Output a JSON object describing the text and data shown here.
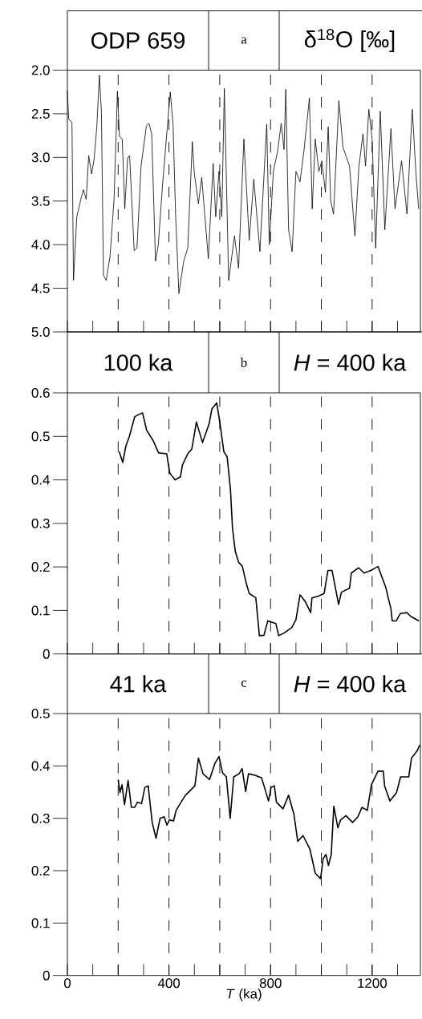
{
  "chart_data": [
    {
      "type": "line",
      "annotations": [
        "ODP 659",
        "a",
        "δ$^{18}$O [‰]"
      ],
      "color": "#000000",
      "x": [
        0,
        5,
        18,
        24,
        37,
        53,
        63,
        74,
        84,
        95,
        105,
        116,
        126,
        134,
        142,
        153,
        168,
        184,
        197,
        205,
        216,
        226,
        237,
        245,
        263,
        274,
        290,
        311,
        321,
        332,
        347,
        358,
        374,
        405,
        416,
        426,
        439,
        458,
        474,
        492,
        500,
        516,
        529,
        555,
        574,
        584,
        597,
        608,
        618,
        635,
        658,
        674,
        695,
        716,
        734,
        758,
        785,
        795,
        811,
        827,
        842,
        853,
        860,
        871,
        885,
        900,
        916,
        932,
        953,
        964,
        976,
        990,
        1002,
        1016,
        1027,
        1037,
        1048,
        1069,
        1085,
        1111,
        1132,
        1148,
        1164,
        1174,
        1187,
        1200,
        1214,
        1232,
        1250,
        1274,
        1290,
        1316,
        1337,
        1358,
        1372,
        1383
      ],
      "values": [
        2.24,
        2.56,
        2.6,
        4.41,
        3.68,
        3.48,
        3.37,
        3.48,
        2.98,
        3.19,
        3.03,
        2.64,
        2.06,
        2.48,
        4.35,
        4.41,
        4.13,
        3.47,
        2.24,
        2.76,
        2.79,
        3.59,
        3.01,
        2.98,
        4.07,
        4.04,
        3.1,
        2.64,
        2.61,
        2.73,
        4.19,
        4.0,
        3.34,
        2.25,
        2.61,
        3.65,
        4.56,
        4.19,
        4.04,
        2.82,
        3.19,
        3.53,
        3.23,
        4.16,
        3.07,
        3.68,
        3.16,
        3.68,
        2.21,
        4.41,
        3.9,
        4.27,
        2.79,
        3.95,
        3.25,
        4.08,
        2.62,
        4.0,
        3.16,
        2.94,
        2.61,
        2.91,
        2.22,
        3.83,
        4.08,
        3.16,
        3.28,
        2.91,
        2.32,
        3.59,
        2.79,
        3.16,
        3.04,
        3.4,
        2.65,
        3.5,
        3.65,
        2.35,
        2.88,
        3.1,
        3.9,
        3.1,
        2.73,
        3.1,
        2.45,
        2.79,
        4.04,
        2.47,
        3.83,
        2.67,
        3.59,
        3.04,
        3.65,
        2.45,
        3.16,
        3.59
      ],
      "xlim": [
        0,
        1390
      ],
      "ylim": [
        5.0,
        2.0
      ],
      "tick_labels": "y",
      "xticks": [
        0,
        {
          "value": 100,
          "label": null
        },
        {
          "value": 200,
          "label": null
        },
        {
          "value": 300,
          "label": null
        },
        400,
        {
          "value": 500,
          "label": null
        },
        {
          "value": 600,
          "label": null
        },
        {
          "value": 700,
          "label": null
        },
        800,
        {
          "value": 900,
          "label": null
        },
        {
          "value": 1000,
          "label": null
        },
        {
          "value": 1100,
          "label": null
        },
        1200,
        {
          "value": 1300,
          "label": null
        }
      ],
      "yticks": [
        {
          "value": 2,
          "label": "2.0"
        },
        2.5,
        {
          "value": 3,
          "label": "3.0"
        },
        3.5,
        {
          "value": 4,
          "label": "4.0"
        },
        4.5,
        {
          "value": 5,
          "label": "5.0"
        }
      ],
      "ref_lines": [
        {
          "axis": "x",
          "value": 200,
          "line_style": "dashed"
        },
        {
          "axis": "x",
          "value": 400,
          "line_style": "dashed"
        },
        {
          "axis": "x",
          "value": 600,
          "line_style": "dashed"
        },
        {
          "axis": "x",
          "value": 800,
          "line_style": "dashed"
        },
        {
          "axis": "x",
          "value": 1000,
          "line_style": "dashed"
        },
        {
          "axis": "x",
          "value": 1200,
          "line_style": "dashed"
        }
      ]
    },
    {
      "type": "line",
      "annotations": [
        "100 ka",
        "b",
        "*H* = 400 ka"
      ],
      "color": "#000000",
      "x": [
        204,
        218,
        230,
        244,
        265,
        280,
        296,
        312,
        338,
        359,
        391,
        403,
        424,
        445,
        453,
        474,
        490,
        508,
        532,
        542,
        558,
        569,
        588,
        600,
        616,
        629,
        642,
        650,
        661,
        674,
        689,
        705,
        716,
        742,
        756,
        774,
        789,
        821,
        832,
        853,
        884,
        900,
        916,
        937,
        958,
        963,
        989,
        1011,
        1026,
        1042,
        1068,
        1079,
        1111,
        1118,
        1147,
        1168,
        1195,
        1223,
        1253,
        1274,
        1279,
        1295,
        1311,
        1337,
        1353,
        1384
      ],
      "values": [
        0.465,
        0.44,
        0.477,
        0.5,
        0.545,
        0.55,
        0.554,
        0.514,
        0.49,
        0.462,
        0.46,
        0.416,
        0.4,
        0.407,
        0.434,
        0.46,
        0.471,
        0.533,
        0.486,
        0.502,
        0.529,
        0.563,
        0.577,
        0.533,
        0.465,
        0.453,
        0.379,
        0.29,
        0.236,
        0.211,
        0.201,
        0.161,
        0.139,
        0.129,
        0.042,
        0.043,
        0.076,
        0.07,
        0.042,
        0.048,
        0.061,
        0.079,
        0.136,
        0.12,
        0.095,
        0.129,
        0.133,
        0.139,
        0.192,
        0.192,
        0.114,
        0.142,
        0.151,
        0.186,
        0.198,
        0.186,
        0.192,
        0.201,
        0.154,
        0.104,
        0.076,
        0.076,
        0.093,
        0.095,
        0.086,
        0.076
      ],
      "xlim": [
        0,
        1390
      ],
      "ylim": [
        0,
        0.6
      ],
      "tick_labels": "y",
      "xticks": [
        0,
        {
          "value": 100,
          "label": null
        },
        {
          "value": 200,
          "label": null
        },
        {
          "value": 300,
          "label": null
        },
        400,
        {
          "value": 500,
          "label": null
        },
        {
          "value": 600,
          "label": null
        },
        {
          "value": 700,
          "label": null
        },
        800,
        {
          "value": 900,
          "label": null
        },
        {
          "value": 1000,
          "label": null
        },
        {
          "value": 1100,
          "label": null
        },
        1200,
        {
          "value": 1300,
          "label": null
        }
      ],
      "yticks": [
        0,
        0.1,
        0.2,
        0.3,
        0.4,
        0.5,
        0.6
      ],
      "ref_lines": [
        {
          "axis": "x",
          "value": 200,
          "line_style": "dashed"
        },
        {
          "axis": "x",
          "value": 400,
          "line_style": "dashed"
        },
        {
          "axis": "x",
          "value": 600,
          "line_style": "dashed"
        },
        {
          "axis": "x",
          "value": 800,
          "line_style": "dashed"
        },
        {
          "axis": "x",
          "value": 1000,
          "line_style": "dashed"
        },
        {
          "axis": "x",
          "value": 1200,
          "line_style": "dashed"
        }
      ]
    },
    {
      "type": "line",
      "annotations": [
        "41 ka",
        "c",
        "*H* = 400 ka"
      ],
      "color": "#000000",
      "xlabel": "*T* (ka)",
      "x": [
        200,
        207,
        215,
        225,
        239,
        252,
        265,
        276,
        292,
        305,
        318,
        334,
        349,
        365,
        381,
        392,
        402,
        418,
        428,
        444,
        465,
        486,
        502,
        516,
        534,
        560,
        581,
        597,
        611,
        626,
        641,
        655,
        676,
        688,
        702,
        713,
        739,
        765,
        792,
        802,
        815,
        823,
        849,
        871,
        892,
        907,
        928,
        955,
        976,
        997,
        1007,
        1018,
        1028,
        1039,
        1049,
        1065,
        1076,
        1097,
        1123,
        1144,
        1160,
        1181,
        1197,
        1223,
        1244,
        1249,
        1270,
        1296,
        1312,
        1344,
        1355,
        1376,
        1388
      ],
      "values": [
        0.374,
        0.349,
        0.364,
        0.326,
        0.372,
        0.321,
        0.321,
        0.331,
        0.328,
        0.359,
        0.362,
        0.292,
        0.262,
        0.3,
        0.303,
        0.287,
        0.297,
        0.295,
        0.315,
        0.328,
        0.344,
        0.354,
        0.362,
        0.415,
        0.385,
        0.374,
        0.405,
        0.418,
        0.387,
        0.379,
        0.3,
        0.379,
        0.385,
        0.395,
        0.351,
        0.385,
        0.382,
        0.377,
        0.333,
        0.359,
        0.362,
        0.331,
        0.318,
        0.344,
        0.308,
        0.256,
        0.267,
        0.241,
        0.195,
        0.185,
        0.223,
        0.231,
        0.21,
        0.231,
        0.323,
        0.282,
        0.297,
        0.305,
        0.292,
        0.303,
        0.321,
        0.315,
        0.364,
        0.39,
        0.39,
        0.362,
        0.333,
        0.349,
        0.379,
        0.379,
        0.415,
        0.428,
        0.44
      ],
      "xlim": [
        0,
        1390
      ],
      "ylim": [
        0,
        0.5
      ],
      "xticks": [
        0,
        {
          "value": 100,
          "label": null
        },
        {
          "value": 200,
          "label": null
        },
        {
          "value": 300,
          "label": null
        },
        400,
        {
          "value": 500,
          "label": null
        },
        {
          "value": 600,
          "label": null
        },
        {
          "value": 700,
          "label": null
        },
        800,
        {
          "value": 900,
          "label": null
        },
        {
          "value": 1000,
          "label": null
        },
        {
          "value": 1100,
          "label": null
        },
        1200,
        {
          "value": 1300,
          "label": null
        }
      ],
      "yticks": [
        0,
        0.1,
        0.2,
        0.3,
        0.4,
        0.5
      ],
      "ref_lines": [
        {
          "axis": "x",
          "value": 200,
          "line_style": "dashed"
        },
        {
          "axis": "x",
          "value": 400,
          "line_style": "dashed"
        },
        {
          "axis": "x",
          "value": 600,
          "line_style": "dashed"
        },
        {
          "axis": "x",
          "value": 800,
          "line_style": "dashed"
        },
        {
          "axis": "x",
          "value": 1000,
          "line_style": "dashed"
        },
        {
          "axis": "x",
          "value": 1200,
          "line_style": "dashed"
        }
      ]
    }
  ]
}
